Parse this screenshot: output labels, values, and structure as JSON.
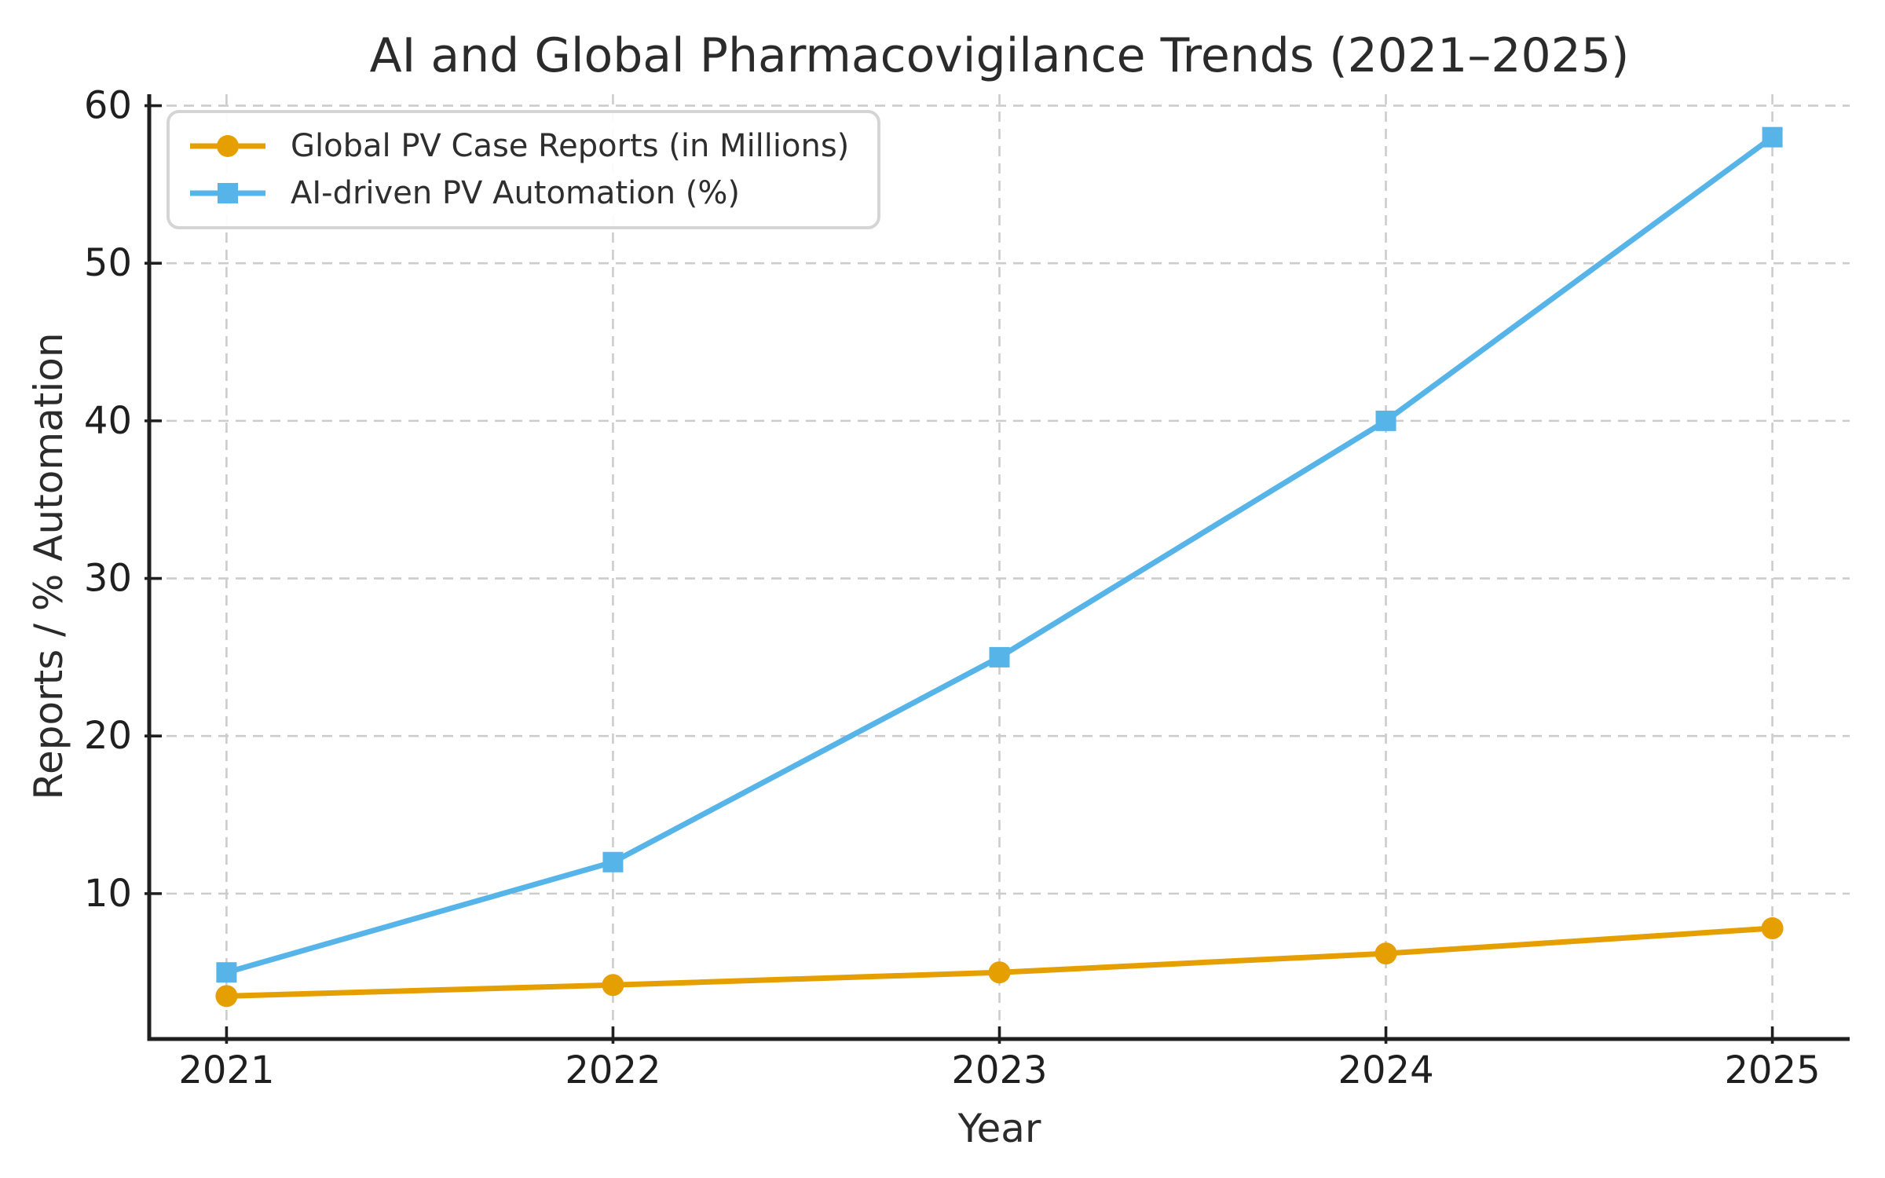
{
  "chart_data": {
    "type": "line",
    "title": "AI and Global Pharmacovigilance Trends (2021–2025)",
    "xlabel": "Year",
    "ylabel": "Reports / % Automation",
    "x": [
      2021,
      2022,
      2023,
      2024,
      2025
    ],
    "xticklabels": [
      "2021",
      "2022",
      "2023",
      "2024",
      "2025"
    ],
    "yticks": [
      10,
      20,
      30,
      40,
      50,
      60
    ],
    "xlim": [
      2020.8,
      2025.2
    ],
    "ylim": [
      0.775,
      60.725
    ],
    "grid": true,
    "legend_position": "upper left",
    "series": [
      {
        "name": "Global PV Case Reports (in Millions)",
        "marker": "circle",
        "color": "#E69F00",
        "values": [
          3.5,
          4.2,
          5,
          6.2,
          7.8
        ]
      },
      {
        "name": "AI-driven PV Automation (%)",
        "marker": "square",
        "color": "#56B4E9",
        "values": [
          5,
          12,
          25,
          40,
          58
        ]
      }
    ]
  },
  "style": {
    "text_color": "#2b2b2b",
    "tick_label_color": "#1f1f1f",
    "grid_color": "#cccccc",
    "spine_color": "#1f1f1f",
    "background": "#ffffff",
    "legend_border": "#d5d5d5"
  }
}
